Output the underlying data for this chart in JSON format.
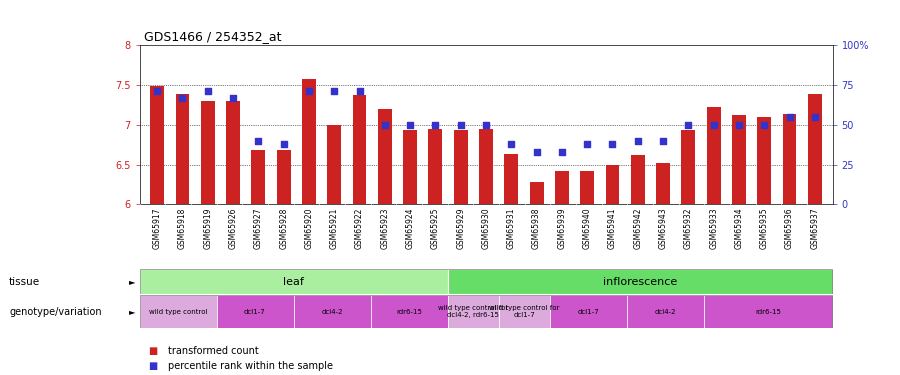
{
  "title": "GDS1466 / 254352_at",
  "samples": [
    "GSM65917",
    "GSM65918",
    "GSM65919",
    "GSM65926",
    "GSM65927",
    "GSM65928",
    "GSM65920",
    "GSM65921",
    "GSM65922",
    "GSM65923",
    "GSM65924",
    "GSM65925",
    "GSM65929",
    "GSM65930",
    "GSM65931",
    "GSM65938",
    "GSM65939",
    "GSM65940",
    "GSM65941",
    "GSM65942",
    "GSM65943",
    "GSM65932",
    "GSM65933",
    "GSM65934",
    "GSM65935",
    "GSM65936",
    "GSM65937"
  ],
  "bar_values": [
    7.48,
    7.38,
    7.3,
    7.3,
    6.68,
    6.68,
    7.57,
    7.0,
    7.37,
    7.2,
    6.93,
    6.95,
    6.93,
    6.95,
    6.63,
    6.28,
    6.42,
    6.42,
    6.5,
    6.62,
    6.52,
    6.93,
    7.22,
    7.12,
    7.1,
    7.13,
    7.38
  ],
  "dot_values": [
    71,
    67,
    71,
    67,
    40,
    38,
    71,
    71,
    71,
    50,
    50,
    50,
    50,
    50,
    38,
    33,
    33,
    38,
    38,
    40,
    40,
    50,
    50,
    50,
    50,
    55,
    55
  ],
  "ymin": 6.0,
  "ymax": 8.0,
  "yticks": [
    6.0,
    6.5,
    7.0,
    7.5,
    8.0
  ],
  "ytick_labels": [
    "6",
    "6.5",
    "7",
    "7.5",
    "8"
  ],
  "y2ticks": [
    0,
    25,
    50,
    75,
    100
  ],
  "y2tick_labels": [
    "0",
    "25",
    "50",
    "75",
    "100%"
  ],
  "bar_color": "#cc2222",
  "dot_color": "#3333cc",
  "bg_color": "#ffffff",
  "plot_bg_color": "#ffffff",
  "tissue_leaf_color": "#aaeea0",
  "tissue_inflo_color": "#66dd66",
  "geno_wt_color": "#ddaadd",
  "geno_var_color": "#cc55cc",
  "leaf_count": 12,
  "genotype_groups": [
    {
      "label": "wild type control",
      "start": 0,
      "end": 2,
      "color": "#ddaadd"
    },
    {
      "label": "dcl1-7",
      "start": 3,
      "end": 5,
      "color": "#cc55cc"
    },
    {
      "label": "dcl4-2",
      "start": 6,
      "end": 8,
      "color": "#cc55cc"
    },
    {
      "label": "rdr6-15",
      "start": 9,
      "end": 11,
      "color": "#cc55cc"
    },
    {
      "label": "wild type control for\ndcl4-2, rdr6-15",
      "start": 12,
      "end": 13,
      "color": "#ddaadd"
    },
    {
      "label": "wild type control for\ndcl1-7",
      "start": 14,
      "end": 15,
      "color": "#ddaadd"
    },
    {
      "label": "dcl1-7",
      "start": 16,
      "end": 18,
      "color": "#cc55cc"
    },
    {
      "label": "dcl4-2",
      "start": 19,
      "end": 21,
      "color": "#cc55cc"
    },
    {
      "label": "rdr6-15",
      "start": 22,
      "end": 26,
      "color": "#cc55cc"
    }
  ]
}
